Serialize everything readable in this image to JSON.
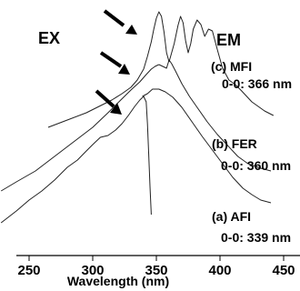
{
  "chart_data": {
    "type": "line",
    "title": "",
    "xlabel": "Wavelength (nm)",
    "ylabel": "",
    "xlim": [
      225,
      455
    ],
    "xticks": [
      250,
      300,
      350,
      400,
      450
    ],
    "grid": false,
    "regions": {
      "left": "EX",
      "right": "EM"
    },
    "series": [
      {
        "name": "MFI",
        "label": "(c) MFI",
        "origin": "0-0: 366 nm",
        "ex": [
          [
            265,
            140
          ],
          [
            280,
            132
          ],
          [
            295,
            124
          ],
          [
            305,
            117
          ],
          [
            315,
            110
          ],
          [
            323,
            103
          ],
          [
            330,
            96
          ],
          [
            335,
            88
          ],
          [
            340,
            76
          ],
          [
            343,
            62
          ],
          [
            346,
            46
          ],
          [
            348,
            32
          ],
          [
            350,
            20
          ],
          [
            352,
            13
          ],
          [
            354,
            18
          ],
          [
            356,
            35
          ],
          [
            358,
            58
          ],
          [
            360,
            68
          ]
        ],
        "em": [
          [
            360,
            68
          ],
          [
            364,
            48
          ],
          [
            367,
            28
          ],
          [
            369,
            18
          ],
          [
            371,
            25
          ],
          [
            373,
            45
          ],
          [
            375,
            58
          ],
          [
            377,
            48
          ],
          [
            379,
            32
          ],
          [
            382,
            22
          ],
          [
            385,
            27
          ],
          [
            388,
            40
          ],
          [
            391,
            32
          ],
          [
            394,
            34
          ],
          [
            398,
            55
          ],
          [
            402,
            75
          ],
          [
            407,
            88
          ],
          [
            412,
            93
          ],
          [
            417,
            100
          ],
          [
            425,
            112
          ],
          [
            435,
            122
          ],
          [
            442,
            127
          ]
        ]
      },
      {
        "name": "FER",
        "label": "(b) FER",
        "origin": "0-0: 360 nm",
        "ex": [
          [
            228,
            210
          ],
          [
            240,
            200
          ],
          [
            255,
            188
          ],
          [
            270,
            172
          ],
          [
            285,
            156
          ],
          [
            300,
            140
          ],
          [
            312,
            124
          ],
          [
            322,
            110
          ],
          [
            330,
            99
          ],
          [
            337,
            90
          ],
          [
            342,
            82
          ],
          [
            346,
            76
          ],
          [
            349,
            73
          ],
          [
            352,
            71
          ]
        ],
        "em": [
          [
            352,
            71
          ],
          [
            355,
            73
          ],
          [
            358,
            75
          ],
          [
            360,
            66
          ],
          [
            362,
            70
          ],
          [
            365,
            78
          ],
          [
            370,
            92
          ],
          [
            376,
            106
          ],
          [
            383,
            120
          ],
          [
            390,
            134
          ],
          [
            398,
            148
          ],
          [
            406,
            160
          ],
          [
            414,
            172
          ],
          [
            422,
            180
          ],
          [
            432,
            185
          ],
          [
            440,
            188
          ]
        ]
      },
      {
        "name": "AFI",
        "label": "(a) AFI",
        "origin": "0-0: 339 nm",
        "ex": [
          [
            228,
            245
          ],
          [
            240,
            232
          ],
          [
            250,
            220
          ],
          [
            260,
            210
          ],
          [
            270,
            198
          ],
          [
            280,
            184
          ],
          [
            288,
            176
          ],
          [
            295,
            166
          ],
          [
            300,
            159
          ],
          [
            306,
            151
          ],
          [
            312,
            149
          ],
          [
            318,
            143
          ],
          [
            323,
            136
          ],
          [
            328,
            127
          ],
          [
            333,
            117
          ],
          [
            337,
            110
          ],
          [
            340,
            106
          ],
          [
            342,
            112
          ],
          [
            343,
            136
          ],
          [
            344,
            170
          ],
          [
            345,
            205
          ],
          [
            346,
            236
          ]
        ],
        "em": [
          [
            339,
            106
          ],
          [
            343,
            103
          ],
          [
            347,
            98
          ],
          [
            352,
            98
          ],
          [
            357,
            101
          ],
          [
            363,
            107
          ],
          [
            370,
            118
          ],
          [
            378,
            134
          ],
          [
            386,
            150
          ],
          [
            394,
            165
          ],
          [
            402,
            180
          ],
          [
            410,
            195
          ],
          [
            418,
            207
          ],
          [
            425,
            214
          ],
          [
            432,
            220
          ],
          [
            440,
            223
          ]
        ]
      }
    ]
  },
  "labels": {
    "ex": "EX",
    "em": "EM",
    "c_label": "(c) MFI",
    "c_origin": "0-0: 366 nm",
    "b_label": "(b) FER",
    "b_origin": "0-0: 360 nm",
    "a_label": "(a) AFI",
    "a_origin": "0-0: 339 nm",
    "xlabel": "Wavelength (nm)"
  }
}
